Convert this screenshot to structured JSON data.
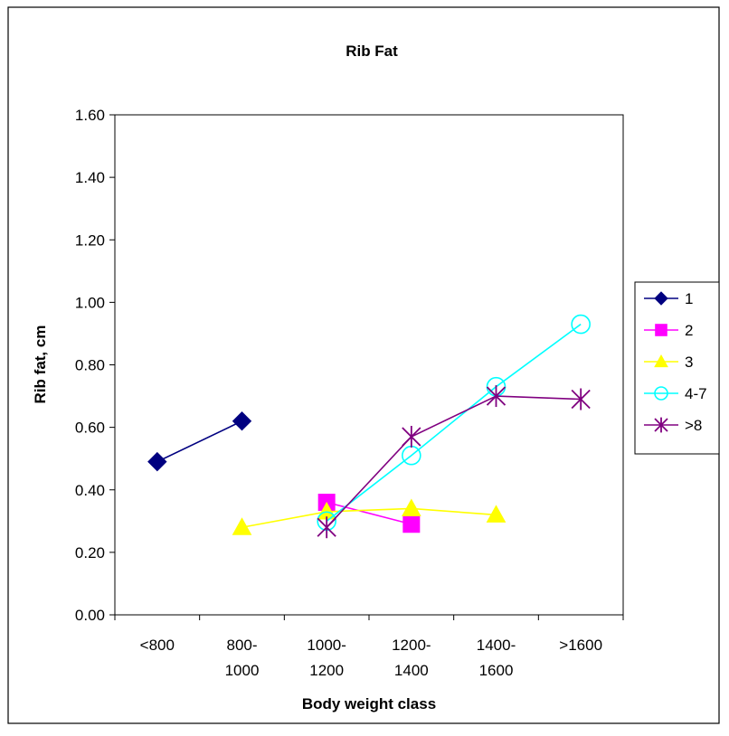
{
  "chart_data": {
    "type": "line",
    "title": "Rib Fat",
    "xlabel": "Body weight class",
    "ylabel": "Rib fat, cm",
    "categories": [
      [
        "<800"
      ],
      [
        "800-",
        "1000"
      ],
      [
        "1000-",
        "1200"
      ],
      [
        "1200-",
        "1400"
      ],
      [
        "1400-",
        "1600"
      ],
      [
        ">1600"
      ]
    ],
    "ylim": [
      0,
      1.6
    ],
    "yticks": [
      "0.00",
      "0.20",
      "0.40",
      "0.60",
      "0.80",
      "1.00",
      "1.20",
      "1.40",
      "1.60"
    ],
    "grid": false,
    "legend_position": "right",
    "series": [
      {
        "name": "1",
        "color": "#000080",
        "marker": "diamond",
        "values": [
          0.49,
          0.62,
          null,
          null,
          null,
          null
        ]
      },
      {
        "name": "2",
        "color": "#FF00FF",
        "marker": "square",
        "values": [
          null,
          null,
          0.36,
          0.29,
          null,
          null
        ]
      },
      {
        "name": "3",
        "color": "#FFFF00",
        "marker": "triangle",
        "values": [
          null,
          0.28,
          0.33,
          0.34,
          0.32,
          null
        ]
      },
      {
        "name": "4-7",
        "color": "#00FFFF",
        "marker": "circle",
        "values": [
          null,
          null,
          0.3,
          0.51,
          0.73,
          0.93
        ]
      },
      {
        "name": ">8",
        "color": "#800080",
        "marker": "asterisk",
        "values": [
          null,
          null,
          0.28,
          0.57,
          0.7,
          0.69
        ]
      }
    ]
  }
}
